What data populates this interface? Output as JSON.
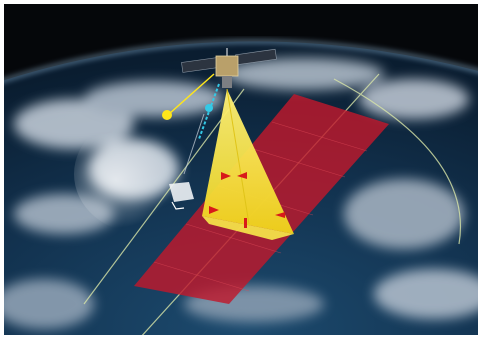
{
  "scene": {
    "subject": "satellite-over-earth",
    "colors": {
      "space": "#05070a",
      "ocean": "#0d2c4a",
      "cloud": "#c9d3de",
      "swath": "#c0182c",
      "beam": "#f2e12c",
      "beam_marker": "#d81a1a",
      "orbit_line": "#d9e6a8",
      "signal_yellow": "#ffe61a",
      "signal_cyan": "#34c9e6"
    }
  }
}
